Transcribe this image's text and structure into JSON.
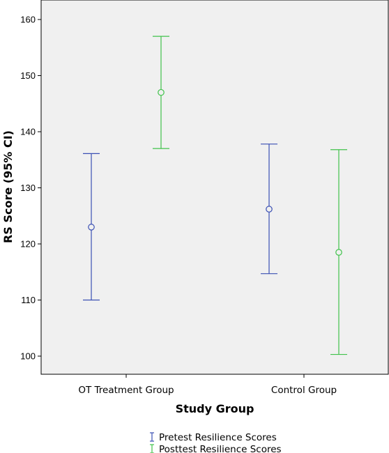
{
  "chart_data": {
    "type": "errorbar",
    "title": "",
    "xlabel": "Study Group",
    "ylabel": "RS Score (95% CI)",
    "ylim": [
      97,
      163
    ],
    "yticks": [
      100,
      110,
      120,
      130,
      140,
      150,
      160
    ],
    "categories": [
      "OT Treatment Group",
      "Control Group"
    ],
    "grid": false,
    "legend_position": "bottom-center",
    "series": [
      {
        "name": "Pretest Resilience Scores",
        "color": "#3a4fb3",
        "points": [
          {
            "mean": 123.0,
            "lower": 110.0,
            "upper": 136.1
          },
          {
            "mean": 126.2,
            "lower": 114.7,
            "upper": 137.8
          }
        ]
      },
      {
        "name": "Posttest Resilience Scores",
        "color": "#3fc24a",
        "points": [
          {
            "mean": 147.0,
            "lower": 137.0,
            "upper": 157.0
          },
          {
            "mean": 118.5,
            "lower": 100.3,
            "upper": 136.8
          }
        ]
      }
    ]
  }
}
